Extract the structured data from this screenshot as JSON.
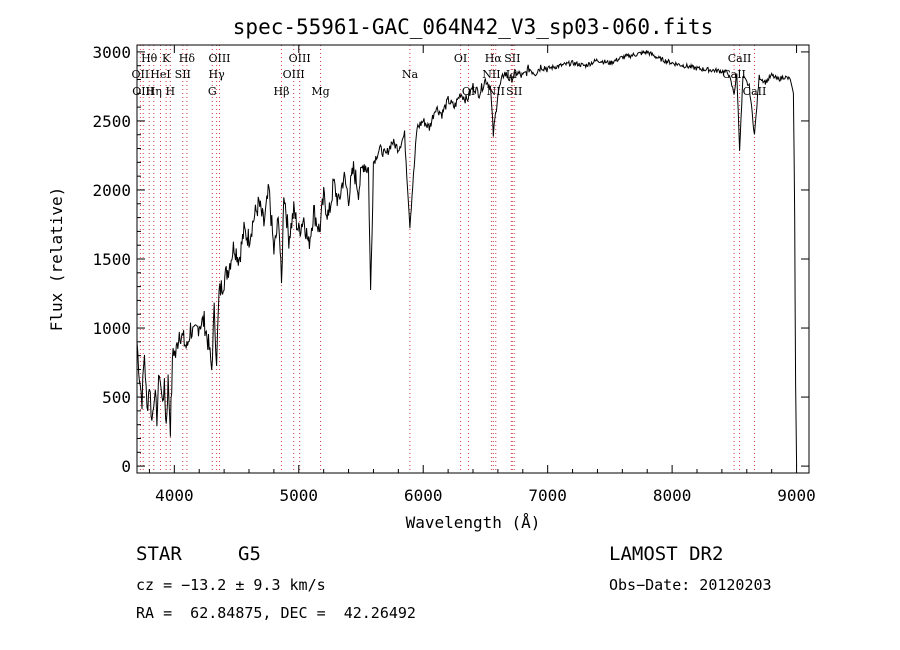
{
  "chart_data": {
    "type": "line",
    "title": "spec-55961-GAC_064N42_V3_sp03-060.fits",
    "xlabel": "Wavelength (Å)",
    "ylabel": "Flux (relative)",
    "xlim": [
      3700,
      9100
    ],
    "ylim": [
      -50,
      3050
    ],
    "xticks": [
      4000,
      5000,
      6000,
      7000,
      8000,
      9000
    ],
    "yticks": [
      0,
      500,
      1000,
      1500,
      2000,
      2500,
      3000
    ],
    "grid": false,
    "series": [
      {
        "x": [
          3700,
          3720,
          3740,
          3760,
          3780,
          3800,
          3820,
          3840,
          3860,
          3880,
          3900,
          3920,
          3935,
          3950,
          3968,
          3990,
          4010,
          4040,
          4080,
          4101,
          4130,
          4160,
          4200,
          4240,
          4280,
          4300,
          4320,
          4340,
          4360,
          4400,
          4440,
          4480,
          4520,
          4560,
          4600,
          4640,
          4680,
          4720,
          4760,
          4800,
          4840,
          4861,
          4880,
          4920,
          4960,
          5000,
          5040,
          5080,
          5120,
          5167,
          5200,
          5240,
          5280,
          5320,
          5360,
          5400,
          5440,
          5480,
          5520,
          5560,
          5577,
          5600,
          5650,
          5700,
          5750,
          5800,
          5850,
          5893,
          5950,
          6000,
          6050,
          6100,
          6150,
          6200,
          6250,
          6300,
          6350,
          6400,
          6450,
          6500,
          6540,
          6563,
          6600,
          6650,
          6700,
          6750,
          6800,
          6850,
          6900,
          6950,
          7000,
          7100,
          7200,
          7300,
          7400,
          7500,
          7600,
          7700,
          7800,
          7900,
          8000,
          8100,
          8200,
          8300,
          8400,
          8450,
          8498,
          8520,
          8542,
          8570,
          8620,
          8662,
          8700,
          8750,
          8800,
          8850,
          8900,
          8950,
          8975,
          8985,
          8992,
          9000
        ],
        "y": [
          900,
          650,
          480,
          820,
          400,
          600,
          320,
          550,
          350,
          700,
          480,
          560,
          300,
          620,
          280,
          860,
          800,
          980,
          900,
          850,
          1000,
          940,
          1030,
          1050,
          850,
          700,
          1120,
          780,
          1250,
          1350,
          1450,
          1600,
          1500,
          1700,
          1650,
          1800,
          1900,
          1750,
          2000,
          1550,
          1800,
          1300,
          2000,
          1650,
          1850,
          1700,
          1800,
          1600,
          1850,
          1700,
          1950,
          1800,
          2050,
          1900,
          2100,
          1950,
          2150,
          2000,
          2200,
          2150,
          1250,
          2200,
          2300,
          2250,
          2350,
          2300,
          2400,
          1750,
          2450,
          2500,
          2450,
          2600,
          2550,
          2650,
          2600,
          2700,
          2650,
          2750,
          2700,
          2800,
          2750,
          2400,
          2700,
          2850,
          2800,
          2850,
          2820,
          2880,
          2850,
          2900,
          2880,
          2900,
          2920,
          2900,
          2940,
          2920,
          2960,
          2980,
          3000,
          2950,
          2920,
          2900,
          2880,
          2870,
          2860,
          2850,
          2700,
          2840,
          2300,
          2820,
          2750,
          2400,
          2820,
          2780,
          2830,
          2800,
          2820,
          2800,
          2700,
          1800,
          600,
          0
        ]
      }
    ],
    "line_markers": [
      {
        "label": "Hθ",
        "wave": 3798,
        "row": 1
      },
      {
        "label": "OII",
        "wave": 3727,
        "row": 2
      },
      {
        "label": "OIII",
        "wave": 3750,
        "row": 3
      },
      {
        "label": "K",
        "wave": 3934,
        "row": 1
      },
      {
        "label": "HeI",
        "wave": 3889,
        "row": 2
      },
      {
        "label": "Hη",
        "wave": 3835,
        "row": 3
      },
      {
        "label": "Hδ",
        "wave": 4101,
        "row": 1
      },
      {
        "label": "SII",
        "wave": 4068,
        "row": 2
      },
      {
        "label": "H",
        "wave": 3968,
        "row": 3
      },
      {
        "label": "OIII",
        "wave": 4363,
        "row": 1
      },
      {
        "label": "Hγ",
        "wave": 4340,
        "row": 2
      },
      {
        "label": "G",
        "wave": 4305,
        "row": 3
      },
      {
        "label": "OIII",
        "wave": 5007,
        "row": 1
      },
      {
        "label": "OIII",
        "wave": 4959,
        "row": 2
      },
      {
        "label": "Hβ",
        "wave": 4861,
        "row": 3
      },
      {
        "label": "Mg",
        "wave": 5175,
        "row": 3
      },
      {
        "label": "Na",
        "wave": 5893,
        "row": 2
      },
      {
        "label": "OI",
        "wave": 6300,
        "row": 1
      },
      {
        "label": "OI",
        "wave": 6364,
        "row": 3
      },
      {
        "label": "Hα",
        "wave": 6563,
        "row": 1
      },
      {
        "label": "SII",
        "wave": 6716,
        "row": 1
      },
      {
        "label": "NII",
        "wave": 6548,
        "row": 2
      },
      {
        "label": "Li",
        "wave": 6708,
        "row": 2
      },
      {
        "label": "NII",
        "wave": 6583,
        "row": 3
      },
      {
        "label": "SII",
        "wave": 6731,
        "row": 3
      },
      {
        "label": "CaII",
        "wave": 8542,
        "row": 1
      },
      {
        "label": "CaII",
        "wave": 8498,
        "row": 2
      },
      {
        "label": "CaII",
        "wave": 8662,
        "row": 3
      }
    ]
  },
  "info": {
    "class_label": "STAR",
    "subclass": "G5",
    "survey": "LAMOST DR2",
    "redshift_text": "cz = −13.2 ± 9.3 km/s",
    "obs_date_text": "Obs−Date: 20120203",
    "coords_text": "RA =  62.84875, DEC =  42.26492"
  }
}
